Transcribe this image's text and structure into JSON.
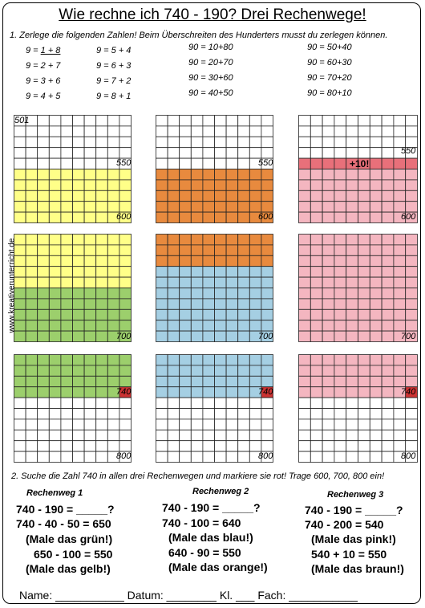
{
  "title": "Wie rechne ich 740 - 190?  Drei Rechenwege!",
  "task1": "1. Zerlege die folgenden Zahlen! Beim Überschreiten des Hunderters musst du zerlegen können.",
  "nine_col1": [
    {
      "a": "9 = ",
      "b": "1 + 8"
    },
    {
      "a": "9 = 2 + 7",
      "b": ""
    },
    {
      "a": "9 = 3 + 6",
      "b": ""
    },
    {
      "a": "9 = 4 + 5",
      "b": ""
    }
  ],
  "nine_col2": [
    "9 = 5 + 4",
    "9 = 6 + 3",
    "9 = 7 + 2",
    "9 = 8 + 1"
  ],
  "ninety_col1": [
    "90 = 10+80",
    "90 = 20+70",
    "90 = 30+60",
    "90 = 40+50"
  ],
  "ninety_col2": [
    "90 = 50+40",
    "90 = 60+30",
    "90 = 70+20",
    "90 = 80+10"
  ],
  "colors": {
    "yellow": "#ffff88",
    "green": "#9ccf6c",
    "orange": "#e88a3e",
    "blue": "#a5cfe3",
    "pink": "#f4b6c0",
    "red_row": "#e8707a",
    "mark": "#cc3333"
  },
  "grid_labels": {
    "g1": [
      "501",
      "550",
      "600"
    ],
    "g2": [
      "550",
      "600"
    ],
    "g3": [
      "550",
      "+10!",
      "600"
    ],
    "g4": [
      "700"
    ],
    "g5": [
      "700"
    ],
    "g6": [
      "700"
    ],
    "g7": [
      "740",
      "800"
    ],
    "g8": [
      "740",
      "800"
    ],
    "g9": [
      "740",
      "800"
    ]
  },
  "watermark": "www.kreativerunterricht.de",
  "task2": "2. Suche die Zahl 740 in allen drei Rechenwegen und markiere sie rot! Trage 600, 700, 800 ein!",
  "rechenweg1": {
    "title": "Rechenweg 1",
    "lines": [
      "740 - 190 = _____?",
      "740 - 40 - 50 = 650",
      "(Male das grün!)",
      "650 - 100 = 550",
      "(Male das gelb!)"
    ]
  },
  "rechenweg2": {
    "title": "Rechenweg 2",
    "lines": [
      "740 - 190 = _____?",
      "740 - 100 = 640",
      "(Male das blau!)",
      "640 - 90 = 550",
      "(Male das orange!)"
    ]
  },
  "rechenweg3": {
    "title": "Rechenweg 3",
    "lines": [
      "740 - 190 = _____?",
      "740 - 200 = 540",
      "(Male das pink!)",
      "540 + 10 = 550",
      "(Male das braun!)"
    ]
  },
  "footer": "Name: ___________ Datum: ________ Kl. ___ Fach: ___________"
}
